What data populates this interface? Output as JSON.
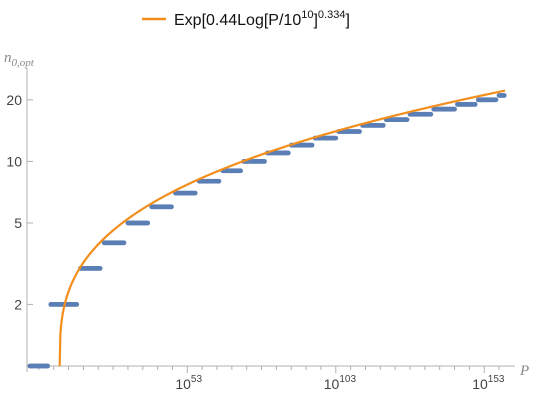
{
  "chart_data": {
    "type": "line",
    "legend": {
      "text_prefix": "Exp[0.44Log[P/10",
      "text_exp1": "10",
      "text_mid": "]",
      "text_exp2": "0.334",
      "text_suffix": "]",
      "placement": "top-center"
    },
    "xlabel": "P",
    "ylabel": "n",
    "ylabel_sub": "0,opt",
    "x_scale": "log",
    "y_scale": "log",
    "x_major_ticks": [
      {
        "exp": 53,
        "base": "10",
        "sup": "53"
      },
      {
        "exp": 103,
        "base": "10",
        "sup": "103"
      },
      {
        "exp": 153,
        "base": "10",
        "sup": "153"
      }
    ],
    "x_minor_tick_step_exp": 5,
    "xlim_exp": [
      -1,
      160
    ],
    "y_ticks": [
      2,
      5,
      10,
      20
    ],
    "y_ticks_labels": [
      "2",
      "5",
      "10",
      "20"
    ],
    "ylim": [
      1,
      25
    ],
    "series": [
      {
        "kind": "curve",
        "color": "#f28e1c",
        "formula": "exp(0.44*ln(P/1e10)^0.334)",
        "x_exp_start": 10,
        "x_exp_end": 160
      },
      {
        "kind": "steps",
        "color": "#5b7fb5",
        "steps": [
          {
            "n": 1,
            "x_exp_from": 0,
            "x_exp_to": 6
          },
          {
            "n": 2,
            "x_exp_from": 7,
            "x_exp_to": 16
          },
          {
            "n": 3,
            "x_exp_from": 17,
            "x_exp_to": 24
          },
          {
            "n": 4,
            "x_exp_from": 25,
            "x_exp_to": 32
          },
          {
            "n": 5,
            "x_exp_from": 33,
            "x_exp_to": 40
          },
          {
            "n": 6,
            "x_exp_from": 41,
            "x_exp_to": 48
          },
          {
            "n": 7,
            "x_exp_from": 49,
            "x_exp_to": 56
          },
          {
            "n": 8,
            "x_exp_from": 57,
            "x_exp_to": 64
          },
          {
            "n": 9,
            "x_exp_from": 65,
            "x_exp_to": 71
          },
          {
            "n": 10,
            "x_exp_from": 72,
            "x_exp_to": 79
          },
          {
            "n": 11,
            "x_exp_from": 80,
            "x_exp_to": 87
          },
          {
            "n": 12,
            "x_exp_from": 88,
            "x_exp_to": 95
          },
          {
            "n": 13,
            "x_exp_from": 96,
            "x_exp_to": 103
          },
          {
            "n": 14,
            "x_exp_from": 104,
            "x_exp_to": 111
          },
          {
            "n": 15,
            "x_exp_from": 112,
            "x_exp_to": 119
          },
          {
            "n": 16,
            "x_exp_from": 120,
            "x_exp_to": 127
          },
          {
            "n": 17,
            "x_exp_from": 128,
            "x_exp_to": 135
          },
          {
            "n": 18,
            "x_exp_from": 136,
            "x_exp_to": 143
          },
          {
            "n": 19,
            "x_exp_from": 144,
            "x_exp_to": 150
          },
          {
            "n": 20,
            "x_exp_from": 151,
            "x_exp_to": 157
          },
          {
            "n": 21,
            "x_exp_from": 158,
            "x_exp_to": 160
          }
        ]
      }
    ]
  }
}
